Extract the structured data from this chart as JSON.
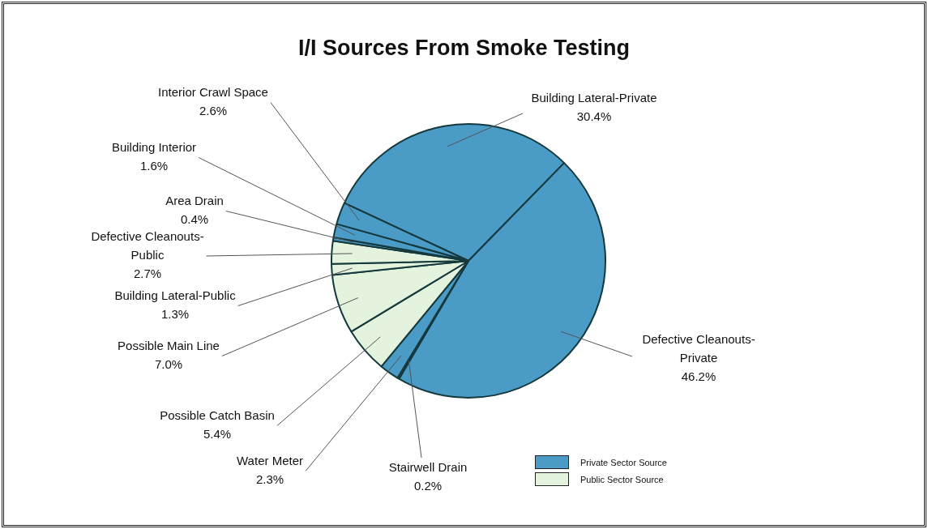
{
  "chart_data": {
    "type": "pie",
    "title": "I/I Sources From Smoke Testing",
    "categories": [
      "Building Lateral-Private",
      "Defective Cleanouts-Private",
      "Stairwell Drain",
      "Water Meter",
      "Possible Catch Basin",
      "Possible Main Line",
      "Building Lateral-Public",
      "Defective Cleanouts-Public",
      "Area Drain",
      "Building Interior",
      "Interior Crawl Space"
    ],
    "values": [
      30.4,
      46.2,
      0.2,
      2.3,
      5.4,
      7.0,
      1.3,
      2.7,
      0.4,
      1.6,
      2.6
    ],
    "colors": [
      "#4a9bc6",
      "#4a9bc6",
      "#4a9bc6",
      "#4a9bc6",
      "#e3f3de",
      "#e3f3de",
      "#e3f3de",
      "#e3f3de",
      "#4a9bc6",
      "#4a9bc6",
      "#4a9bc6"
    ],
    "value_labels": [
      "30.4%",
      "46.2%",
      "0.2%",
      "2.3%",
      "5.4%",
      "7.0%",
      "1.3%",
      "2.7%",
      "0.4%",
      "1.6%",
      "2.6%"
    ],
    "annotations": [
      "Private Sector Source",
      "Public Sector Source"
    ]
  }
}
